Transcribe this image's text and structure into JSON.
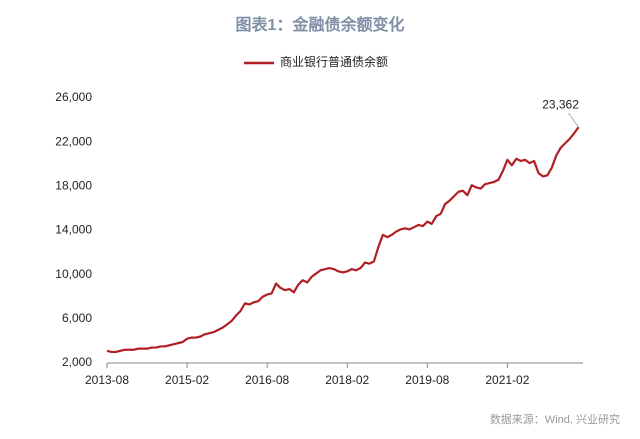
{
  "chart_data": {
    "type": "line",
    "title": "图表1：金融债余额变化",
    "source": "数据来源：Wind, 兴业研究",
    "x": [
      "2013-08",
      "2013-09",
      "2013-10",
      "2013-11",
      "2013-12",
      "2014-01",
      "2014-02",
      "2014-03",
      "2014-04",
      "2014-05",
      "2014-06",
      "2014-07",
      "2014-08",
      "2014-09",
      "2014-10",
      "2014-11",
      "2014-12",
      "2015-01",
      "2015-02",
      "2015-03",
      "2015-04",
      "2015-05",
      "2015-06",
      "2015-07",
      "2015-08",
      "2015-09",
      "2015-10",
      "2015-11",
      "2015-12",
      "2016-01",
      "2016-02",
      "2016-03",
      "2016-04",
      "2016-05",
      "2016-06",
      "2016-07",
      "2016-08",
      "2016-09",
      "2016-10",
      "2016-11",
      "2016-12",
      "2017-01",
      "2017-02",
      "2017-03",
      "2017-04",
      "2017-05",
      "2017-06",
      "2017-07",
      "2017-08",
      "2017-09",
      "2017-10",
      "2017-11",
      "2017-12",
      "2018-01",
      "2018-02",
      "2018-03",
      "2018-04",
      "2018-05",
      "2018-06",
      "2018-07",
      "2018-08",
      "2018-09",
      "2018-10",
      "2018-11",
      "2018-12",
      "2019-01",
      "2019-02",
      "2019-03",
      "2019-04",
      "2019-05",
      "2019-06",
      "2019-07",
      "2019-08",
      "2019-09",
      "2019-10",
      "2019-11",
      "2019-12",
      "2020-01",
      "2020-02",
      "2020-03",
      "2020-04",
      "2020-05",
      "2020-06",
      "2020-07",
      "2020-08",
      "2020-09",
      "2020-10",
      "2020-11",
      "2020-12",
      "2021-01",
      "2021-02",
      "2021-03",
      "2021-04",
      "2021-05",
      "2021-06",
      "2021-07",
      "2021-08",
      "2021-09",
      "2021-10",
      "2021-11",
      "2021-12",
      "2022-01",
      "2022-02",
      "2022-03",
      "2022-04",
      "2022-05",
      "2022-06"
    ],
    "series": [
      {
        "name": "商业银行普通债余额",
        "color": "#b01f24",
        "values": [
          3100,
          3000,
          3000,
          3100,
          3200,
          3200,
          3200,
          3300,
          3300,
          3300,
          3400,
          3400,
          3500,
          3500,
          3600,
          3700,
          3800,
          3900,
          4200,
          4300,
          4300,
          4400,
          4600,
          4700,
          4800,
          5000,
          5200,
          5500,
          5800,
          6300,
          6700,
          7400,
          7300,
          7500,
          7600,
          8000,
          8200,
          8300,
          9200,
          8800,
          8600,
          8700,
          8400,
          9100,
          9500,
          9300,
          9800,
          10100,
          10400,
          10500,
          10600,
          10500,
          10300,
          10200,
          10300,
          10500,
          10400,
          10600,
          11100,
          11000,
          11200,
          12500,
          13600,
          13400,
          13600,
          13900,
          14100,
          14200,
          14100,
          14300,
          14500,
          14400,
          14800,
          14600,
          15300,
          15500,
          16400,
          16700,
          17100,
          17500,
          17600,
          17200,
          18100,
          17900,
          17800,
          18200,
          18300,
          18400,
          18600,
          19400,
          20400,
          19900,
          20500,
          20300,
          20400,
          20100,
          20300,
          19200,
          18900,
          19000,
          19700,
          20800,
          21500,
          21900,
          22300,
          22800,
          23362
        ],
        "value_labels": [
          null,
          null,
          null,
          null,
          null,
          null,
          null,
          null,
          null,
          null,
          null,
          null,
          null,
          null,
          null,
          null,
          null,
          null,
          null,
          null,
          null,
          null,
          null,
          null,
          null,
          null,
          null,
          null,
          null,
          null,
          null,
          null,
          null,
          null,
          null,
          null,
          null,
          null,
          null,
          null,
          null,
          null,
          null,
          null,
          null,
          null,
          null,
          null,
          null,
          null,
          null,
          null,
          null,
          null,
          null,
          null,
          null,
          null,
          null,
          null,
          null,
          null,
          null,
          null,
          null,
          null,
          null,
          null,
          null,
          null,
          null,
          null,
          null,
          null,
          null,
          null,
          null,
          null,
          null,
          null,
          null,
          null,
          null,
          null,
          null,
          null,
          null,
          null,
          null,
          null,
          null,
          null,
          null,
          null,
          null,
          null,
          null,
          null,
          null,
          null,
          null,
          null,
          null,
          null,
          null,
          null,
          "23,362"
        ]
      }
    ],
    "xlim": [
      "2013-08",
      "2022-07"
    ],
    "xticks": [
      "2013-08",
      "2015-02",
      "2016-08",
      "2018-02",
      "2019-08",
      "2021-02"
    ],
    "ylim": [
      2000,
      26000
    ],
    "yticks": [
      {
        "value": 2000,
        "label": "2,000"
      },
      {
        "value": 6000,
        "label": "6,000"
      },
      {
        "value": 10000,
        "label": "10,000"
      },
      {
        "value": 14000,
        "label": "14,000"
      },
      {
        "value": 18000,
        "label": "18,000"
      },
      {
        "value": 22000,
        "label": "22,000"
      },
      {
        "value": 26000,
        "label": "26,000"
      }
    ],
    "grid": false,
    "legend": "top"
  }
}
